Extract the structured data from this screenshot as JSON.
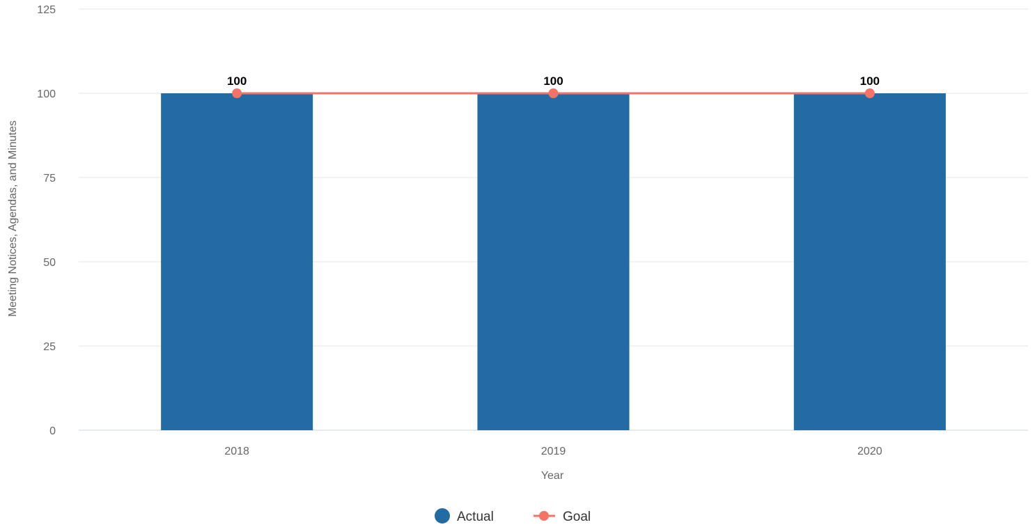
{
  "chart_data": {
    "type": "bar",
    "title": "",
    "xlabel": "Year",
    "ylabel": "Meeting Notices, Agendas, and Minutes",
    "categories": [
      "2018",
      "2019",
      "2020"
    ],
    "ylim": [
      0,
      125
    ],
    "yticks": [
      0,
      25,
      50,
      75,
      100,
      125
    ],
    "grid": true,
    "legend_position": "bottom-center",
    "series": [
      {
        "name": "Actual",
        "kind": "bar",
        "color": "#236ba3",
        "values": [
          100,
          100,
          100
        ]
      },
      {
        "name": "Goal",
        "kind": "line",
        "color": "#f47266",
        "values": [
          100,
          100,
          100
        ],
        "data_labels": [
          "100",
          "100",
          "100"
        ]
      }
    ]
  }
}
